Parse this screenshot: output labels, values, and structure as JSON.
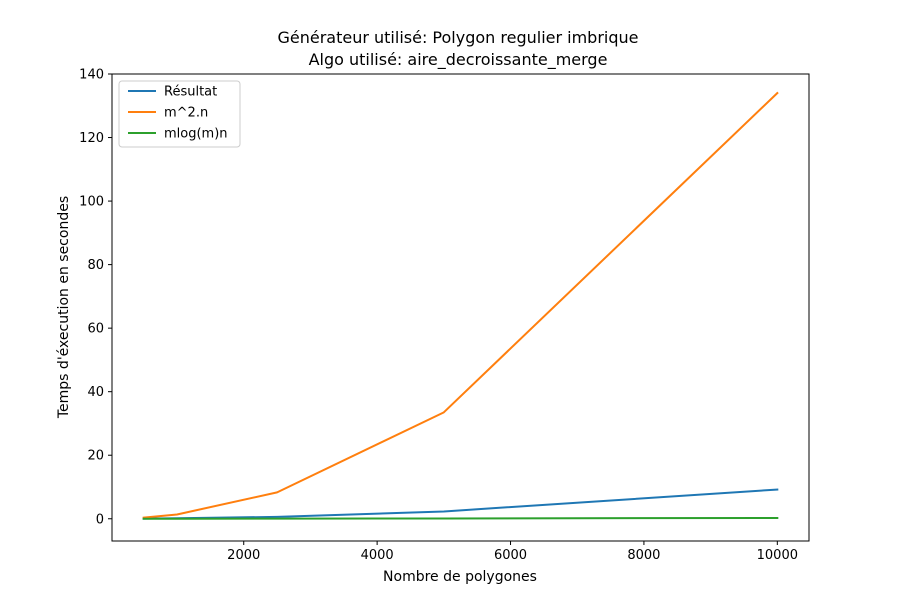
{
  "chart_data": {
    "type": "line",
    "title": [
      "Générateur utilisé: Polygon regulier imbrique",
      "Algo utilisé: aire_decroissante_merge"
    ],
    "xlabel": "Nombre de polygones",
    "ylabel": "Temps d'éxecution en secondes",
    "xlim": [
      25,
      10475
    ],
    "ylim": [
      -7,
      140
    ],
    "xticks": [
      2000,
      4000,
      6000,
      8000,
      10000
    ],
    "yticks": [
      0,
      20,
      40,
      60,
      80,
      100,
      120,
      140
    ],
    "grid": false,
    "legend_position": "top-left",
    "x": [
      500,
      1000,
      2500,
      5000,
      10000
    ],
    "series": [
      {
        "name": "Résultat",
        "color": "#1f77b4",
        "values": [
          0.05,
          0.15,
          0.6,
          2.3,
          9.2
        ]
      },
      {
        "name": "m^2.n",
        "color": "#ff7f0e",
        "values": [
          0.35,
          1.35,
          8.3,
          33.5,
          134.0
        ]
      },
      {
        "name": "mlog(m)n",
        "color": "#2ca02c",
        "values": [
          0.0,
          0.01,
          0.04,
          0.1,
          0.25
        ]
      }
    ]
  }
}
